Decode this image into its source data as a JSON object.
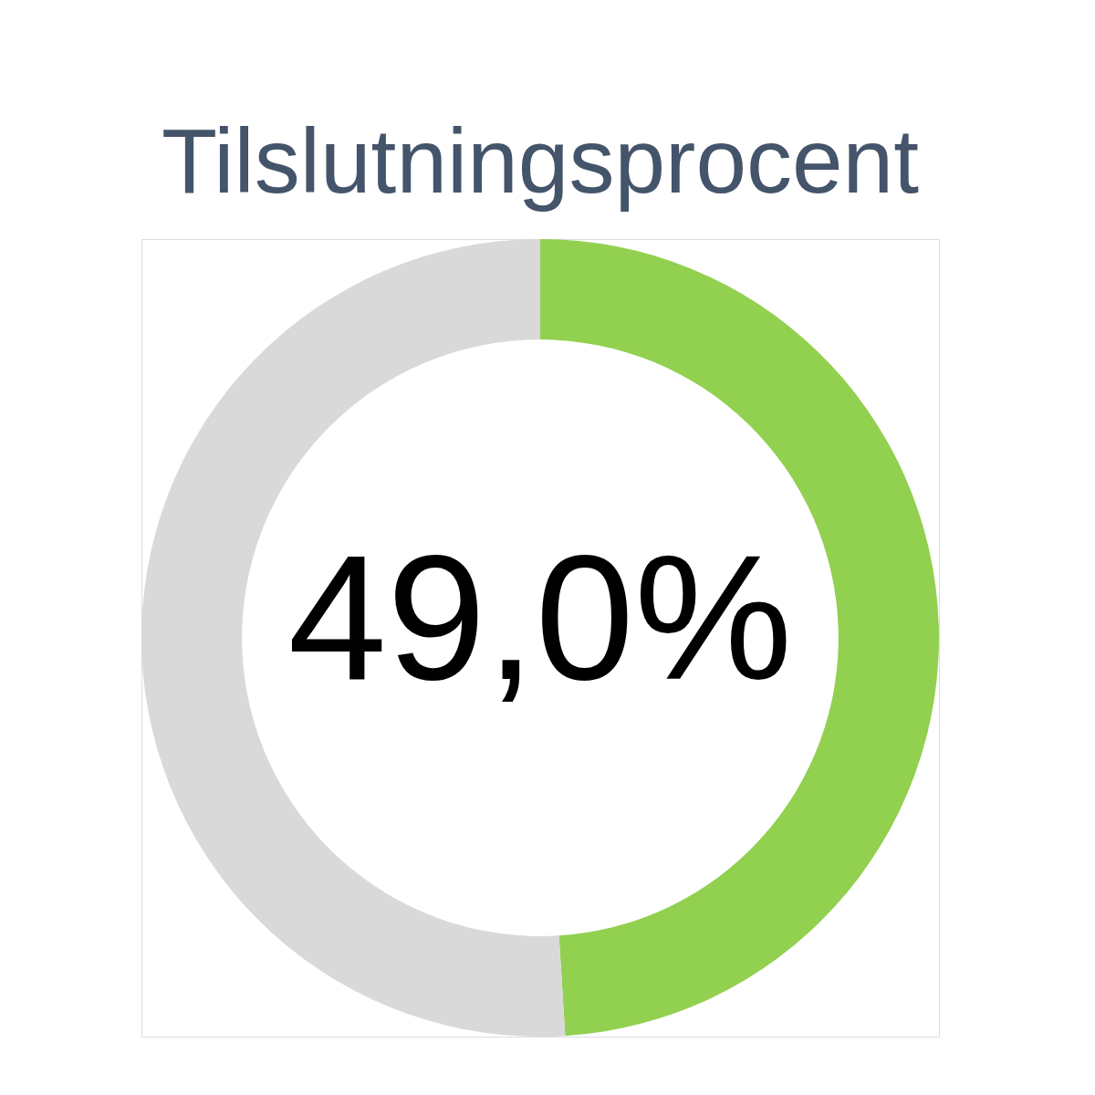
{
  "chart_data": {
    "type": "donut",
    "title": "Tilslutningsprocent",
    "categories": [
      null,
      null
    ],
    "values": [
      49,
      51
    ],
    "colors": [
      "#92d050",
      "#d9d9d9"
    ],
    "value_labels": [
      "49,0%",
      null
    ]
  }
}
